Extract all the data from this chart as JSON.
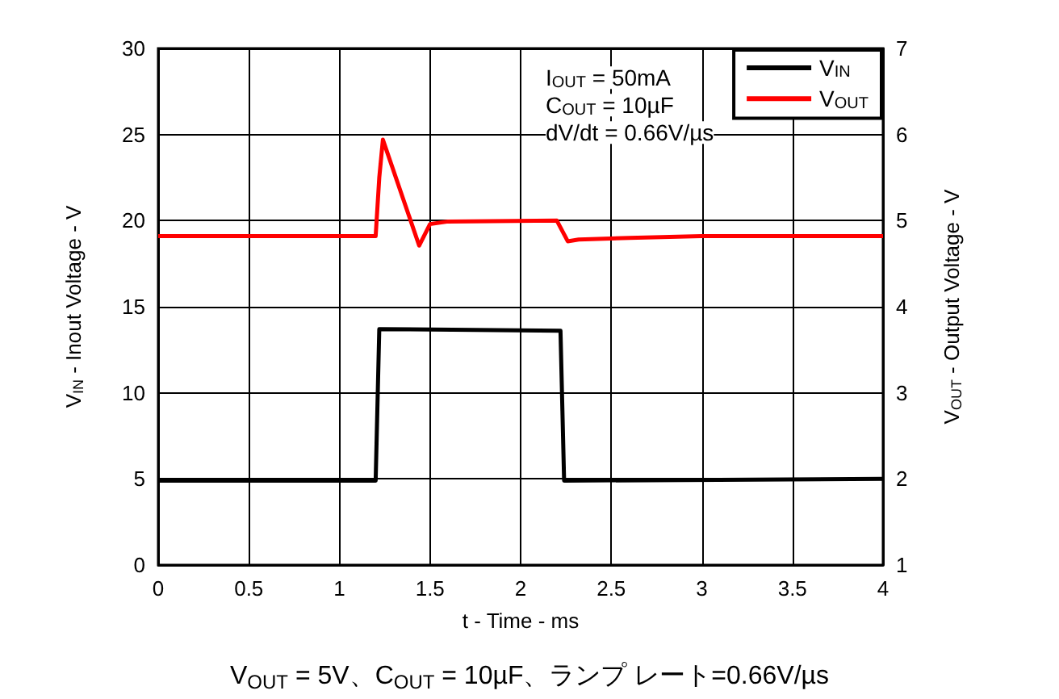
{
  "chart_data": {
    "type": "line",
    "xlabel": "t - Time - ms",
    "ylabel": "V$_{IN}$ - Inout Voltage - V",
    "y2label": "V$_{OUT}$ - Output Voltage - V",
    "xlim": [
      0,
      4
    ],
    "xticks": [
      0,
      0.5,
      1,
      1.5,
      2,
      2.5,
      3,
      3.5,
      4
    ],
    "ylim": [
      0,
      30
    ],
    "yticks": [
      0,
      5,
      10,
      15,
      20,
      25,
      30
    ],
    "y2lim": [
      1,
      7
    ],
    "y2ticks": [
      1,
      2,
      3,
      4,
      5,
      6,
      7
    ],
    "series": [
      {
        "name": "V$_{IN}$",
        "color": "#000000",
        "x": [
          0,
          1.2,
          1.22,
          2.22,
          2.24,
          4
        ],
        "values": [
          4.9,
          4.9,
          13.7,
          13.6,
          4.9,
          5.0
        ]
      },
      {
        "name": "V$_{OUT}$",
        "color": "#ff0000",
        "axis": "y2",
        "x": [
          0,
          1.2,
          1.22,
          1.24,
          1.44,
          1.5,
          1.6,
          2.2,
          2.26,
          2.32,
          2.6,
          3,
          4
        ],
        "values": [
          4.82,
          4.82,
          5.5,
          5.94,
          4.71,
          4.96,
          4.99,
          5.0,
          4.76,
          4.78,
          4.8,
          4.82,
          4.82
        ]
      }
    ],
    "annotations": [
      "I$_{OUT}$ = 50mA",
      "C$_{OUT}$ = 10µF",
      "dV/dt = 0.66V/µs",
      "V$_{OUT}$ = 5V、C$_{OUT}$ = 10µF、ランプ レート=0.66V/µs"
    ],
    "grid": true,
    "legend": "top right",
    "line_style": "solid",
    "marker": "none"
  }
}
